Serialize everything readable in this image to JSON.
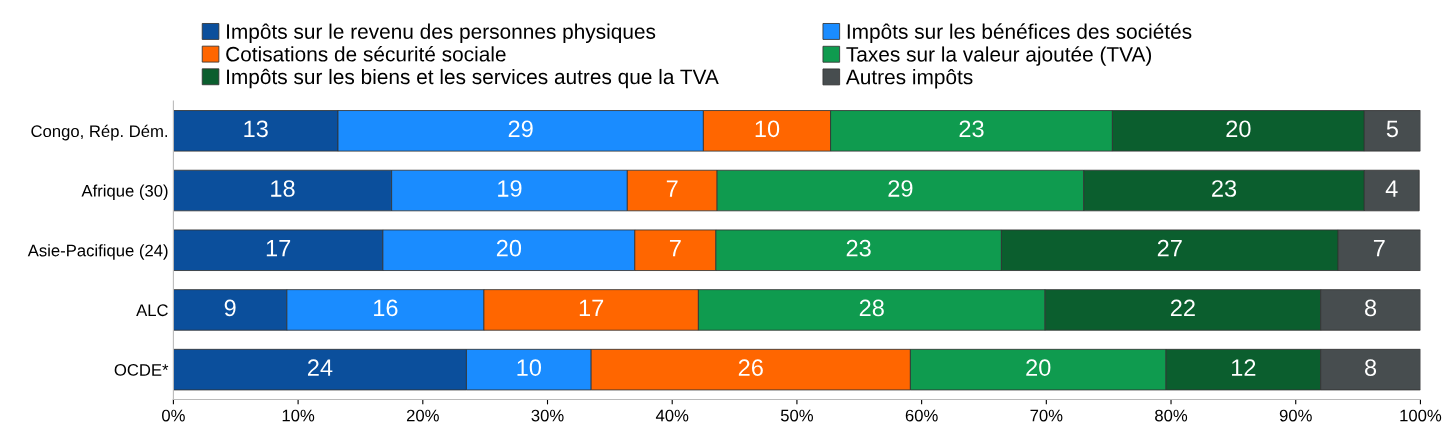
{
  "chart_data": {
    "type": "bar",
    "orientation": "horizontal",
    "stacked": true,
    "categories": [
      "Congo, Rép. Dém.",
      "Afrique (30)",
      "Asie-Pacifique (24)",
      "ALC",
      "OCDE*"
    ],
    "series": [
      {
        "name": "Impôts sur le revenu des personnes physiques",
        "color": "#0b4f9c",
        "values": [
          13.2,
          17.5,
          16.8,
          9.1,
          23.5
        ],
        "value_labels": [
          "13",
          "18",
          "17",
          "9",
          "24"
        ]
      },
      {
        "name": "Impôts sur les bénéfices des sociétés",
        "color": "#1a8cff",
        "values": [
          29.3,
          18.9,
          20.2,
          15.8,
          10.0
        ],
        "value_labels": [
          "29",
          "19",
          "20",
          "16",
          "10"
        ]
      },
      {
        "name": "Cotisations de sécurité sociale",
        "color": "#ff6600",
        "values": [
          10.2,
          7.2,
          6.5,
          17.2,
          25.6
        ],
        "value_labels": [
          "10",
          "7",
          "7",
          "17",
          "26"
        ]
      },
      {
        "name": "Taxes sur la valeur ajoutée (TVA)",
        "color": "#0f9b4f",
        "values": [
          22.6,
          29.4,
          22.9,
          27.8,
          20.5
        ],
        "value_labels": [
          "23",
          "29",
          "23",
          "28",
          "20"
        ]
      },
      {
        "name": "Impôts sur les biens et les services autres que la TVA",
        "color": "#0b5e2e",
        "values": [
          20.2,
          22.5,
          27.0,
          22.1,
          12.4
        ],
        "value_labels": [
          "20",
          "23",
          "27",
          "22",
          "12"
        ]
      },
      {
        "name": "Autres impôts",
        "color": "#474d4f",
        "values": [
          4.5,
          4.4,
          6.6,
          8.0,
          8.0
        ],
        "value_labels": [
          "5",
          "4",
          "7",
          "8",
          "8"
        ]
      }
    ],
    "xlim": [
      0,
      100
    ],
    "xticks": [
      {
        "value": 0,
        "label": "0%"
      },
      {
        "value": 10,
        "label": "10%"
      },
      {
        "value": 20,
        "label": "20%"
      },
      {
        "value": 30,
        "label": "30%"
      },
      {
        "value": 40,
        "label": "40%"
      },
      {
        "value": 50,
        "label": "50%"
      },
      {
        "value": 60,
        "label": "60%"
      },
      {
        "value": 70,
        "label": "70%"
      },
      {
        "value": 80,
        "label": "80%"
      },
      {
        "value": 90,
        "label": "90%"
      },
      {
        "value": 100,
        "label": "100%"
      }
    ],
    "legend": "top",
    "grid": false
  }
}
